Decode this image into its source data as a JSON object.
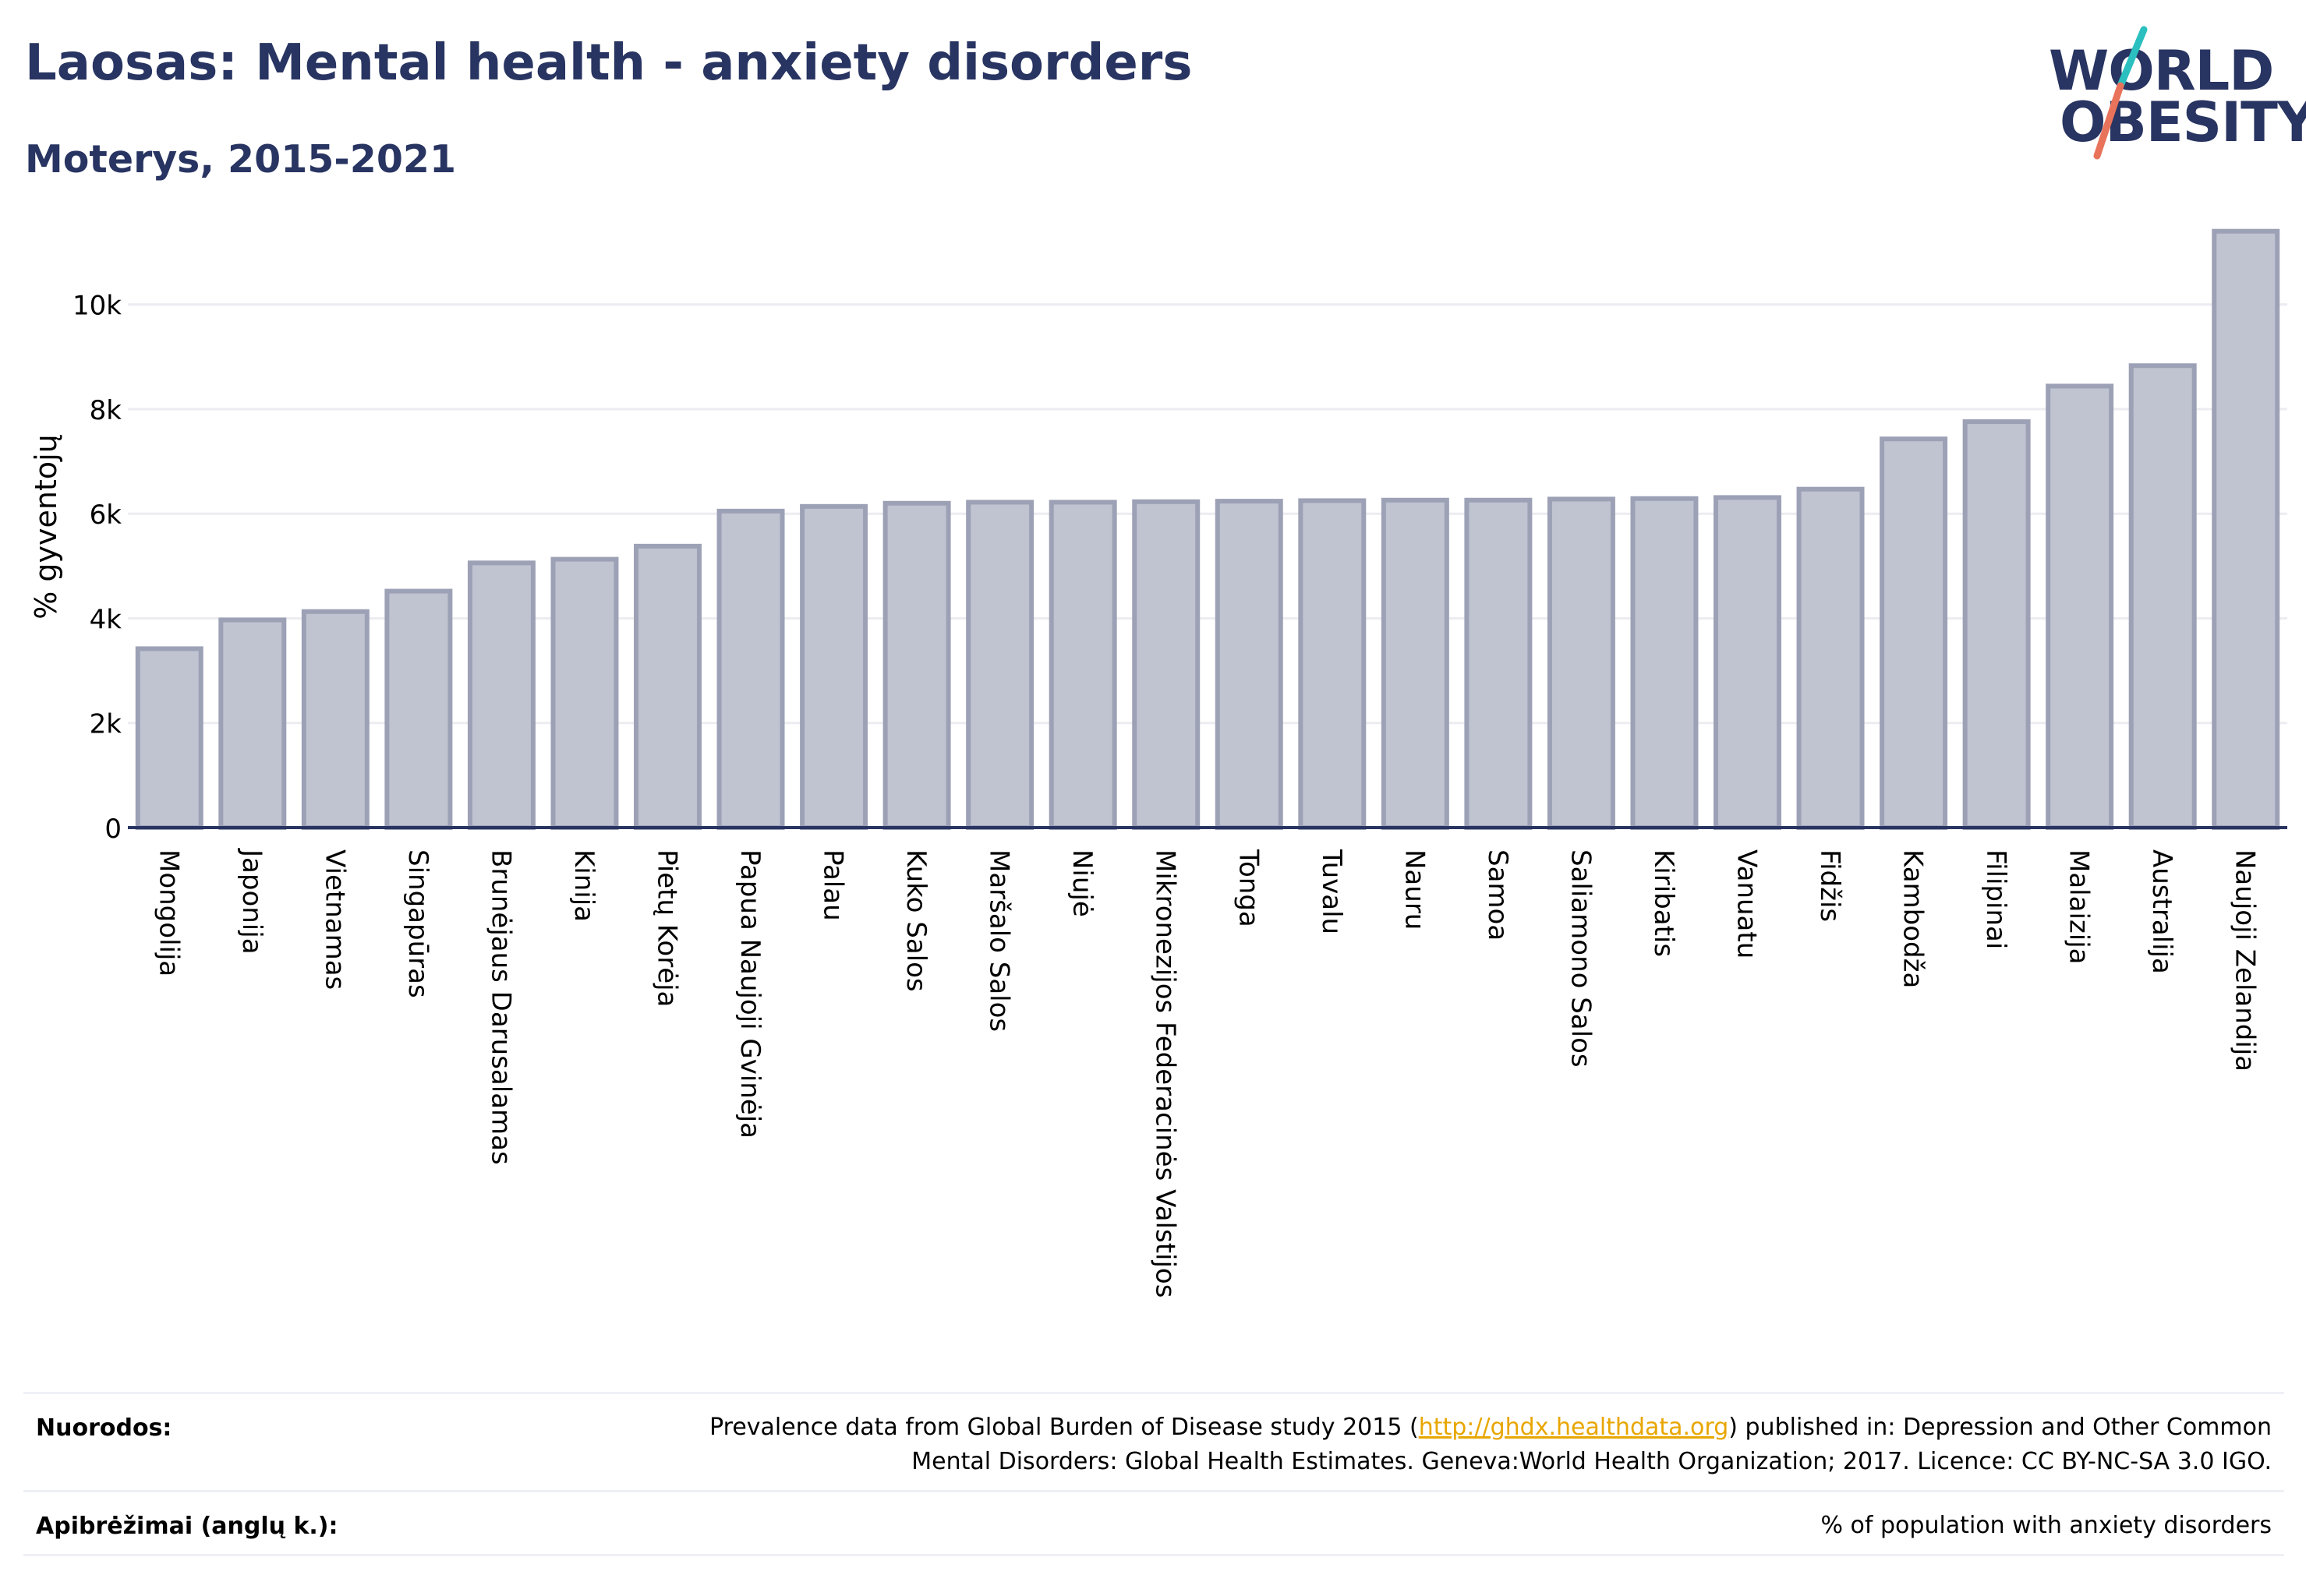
{
  "header": {
    "title": "Laosas: Mental health - anxiety disorders",
    "subtitle": "Moterys, 2015-2021"
  },
  "logo": {
    "line1": "WORLD",
    "line2": "OBESITY",
    "colors": {
      "text": "#283461",
      "slash_teal": "#2bbfbf",
      "slash_coral": "#e8735a"
    }
  },
  "colors": {
    "bar_fill": "#c0c3d0",
    "bar_stroke": "#9da1b6",
    "title": "#283461"
  },
  "chart_data": {
    "type": "bar",
    "ylabel": "% gyventojų",
    "ylim": [
      0,
      11500
    ],
    "yticks": [
      0,
      2000,
      4000,
      6000,
      8000,
      10000
    ],
    "ytick_labels": [
      "0",
      "2k",
      "4k",
      "6k",
      "8k",
      "10k"
    ],
    "grid": true,
    "categories": [
      "Mongolija",
      "Japonija",
      "Vietnamas",
      "Singapūras",
      "Brunėjaus Darusalamas",
      "Kinija",
      "Pietų Korėja",
      "Papua Naujoji Gvinėja",
      "Palau",
      "Kuko Salos",
      "Maršalo Salos",
      "Niujė",
      "Mikronezijos Federacinės Valstijos",
      "Tonga",
      "Tuvalu",
      "Nauru",
      "Samoa",
      "Saliamono Salos",
      "Kiribatis",
      "Vanuatu",
      "Fidžis",
      "Kambodža",
      "Filipinai",
      "Malaizija",
      "Australija",
      "Naujoji Zelandija"
    ],
    "values": [
      3420,
      3970,
      4130,
      4520,
      5060,
      5130,
      5380,
      6050,
      6140,
      6200,
      6220,
      6220,
      6230,
      6240,
      6250,
      6260,
      6260,
      6280,
      6290,
      6310,
      6470,
      7430,
      7760,
      8440,
      8830,
      11400
    ]
  },
  "footer": {
    "references_label": "Nuorodos:",
    "references_pre": "Prevalence data from Global Burden of Disease study 2015 (",
    "references_link": "http://ghdx.healthdata.org",
    "references_post": ") published in: Depression and Other Common",
    "references_line2": "Mental Disorders: Global Health Estimates. Geneva:World Health Organization; 2017. Licence: CC BY-NC-SA 3.0 IGO.",
    "definitions_label": "Apibrėžimai (anglų k.):",
    "definitions_text": "% of population with anxiety disorders"
  }
}
